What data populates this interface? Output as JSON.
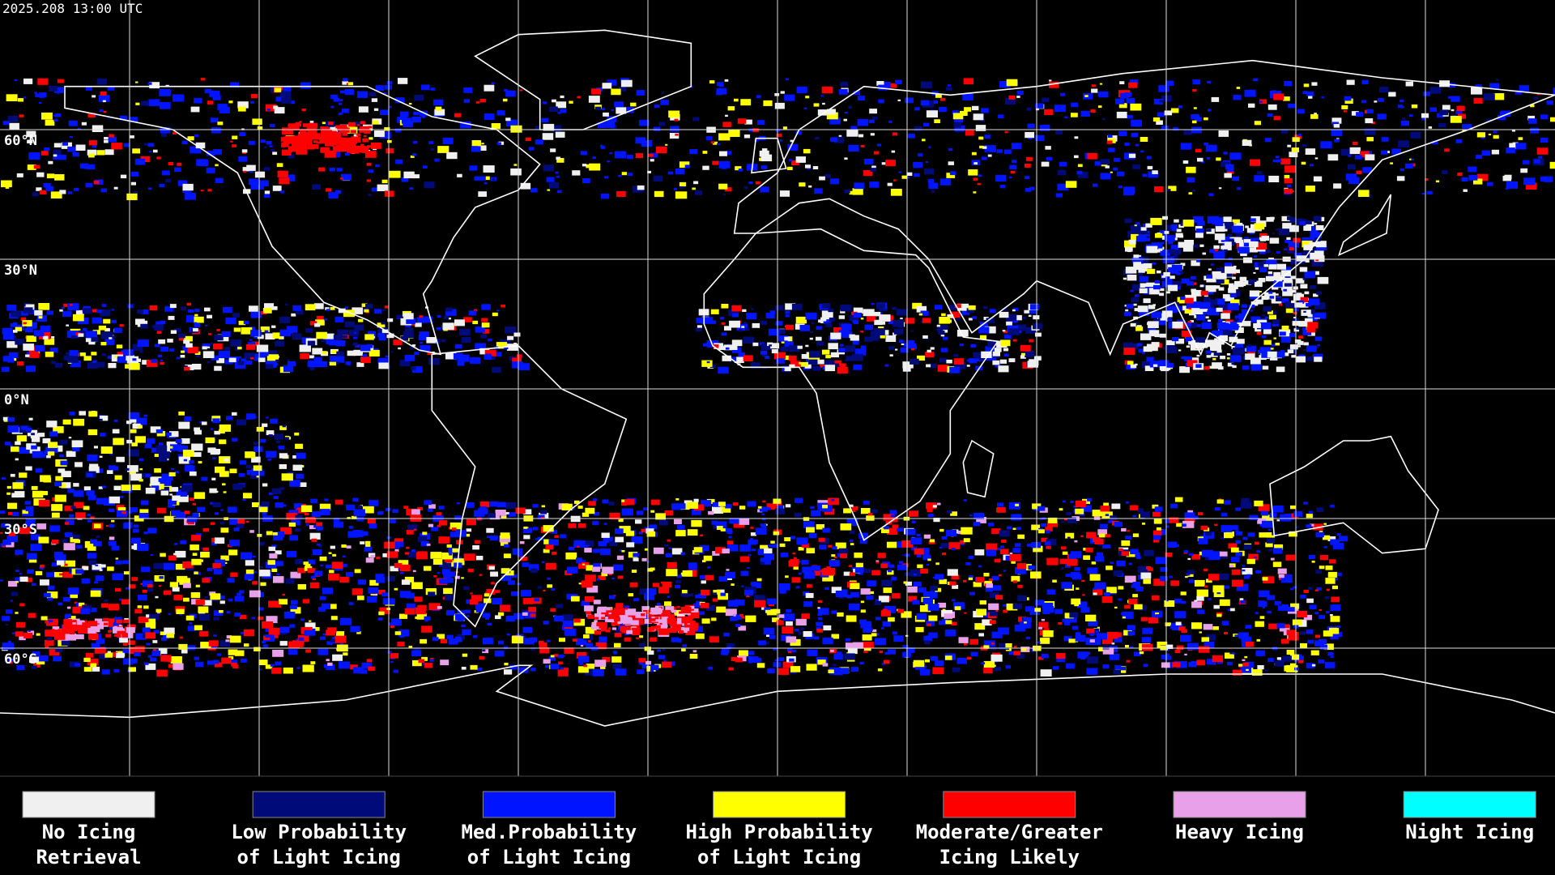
{
  "timestamp": "2025.208 13:00 UTC",
  "latitude_labels": [
    "60°N",
    "30°N",
    "0°N",
    "30°S",
    "60°S"
  ],
  "legend": [
    {
      "lines": [
        "No Icing",
        "Retrieval"
      ],
      "color": "#f0f0f0"
    },
    {
      "lines": [
        "Low Probability",
        "of Light Icing"
      ],
      "color": "#000a78"
    },
    {
      "lines": [
        "Med.Probability",
        "of Light Icing"
      ],
      "color": "#0014ff"
    },
    {
      "lines": [
        "High Probability",
        "of Light Icing"
      ],
      "color": "#ffff00"
    },
    {
      "lines": [
        "Moderate/Greater",
        "Icing Likely"
      ],
      "color": "#ff0000"
    },
    {
      "lines": [
        "Heavy Icing"
      ],
      "color": "#e8a0e8"
    },
    {
      "lines": [
        "Night Icing"
      ],
      "color": "#00ffff"
    }
  ]
}
